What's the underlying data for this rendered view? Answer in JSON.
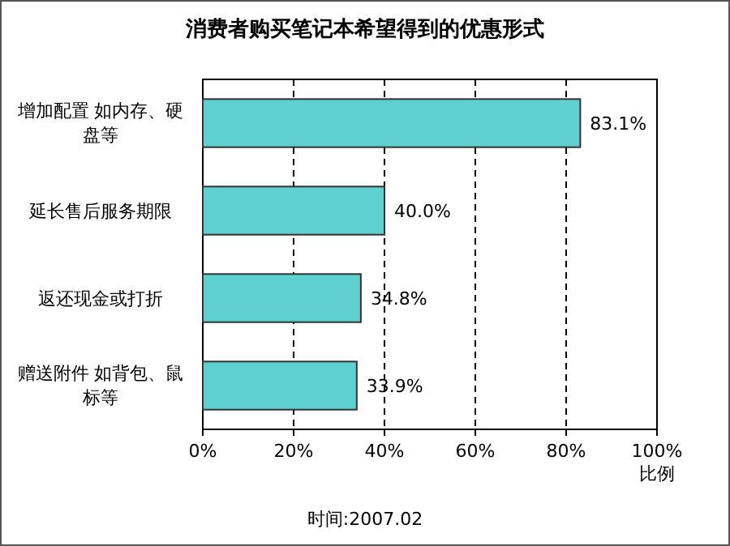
{
  "chart_data": {
    "type": "bar",
    "orientation": "horizontal",
    "title": "消费者购买笔记本希望得到的优惠形式",
    "categories": [
      "增加配置 如内存、硬盘等",
      "延长售后服务期限",
      "返还现金或打折",
      "赠送附件 如背包、鼠标等"
    ],
    "values": [
      83.1,
      40.0,
      34.8,
      33.9
    ],
    "color": "#5fd0d0",
    "value_labels": [
      "83.1%",
      "40.0%",
      "34.8%",
      "33.9%"
    ],
    "xlim": [
      0,
      100
    ],
    "xticks": [
      {
        "value": 0,
        "label": "0%"
      },
      {
        "value": 20,
        "label": "20%"
      },
      {
        "value": 40,
        "label": "40%"
      },
      {
        "value": 60,
        "label": "60%"
      },
      {
        "value": 80,
        "label": "80%"
      },
      {
        "value": 100,
        "label": "100%"
      }
    ],
    "xlabel": "比例",
    "grid": "x",
    "annotations": [
      "时间:2007.02"
    ]
  }
}
